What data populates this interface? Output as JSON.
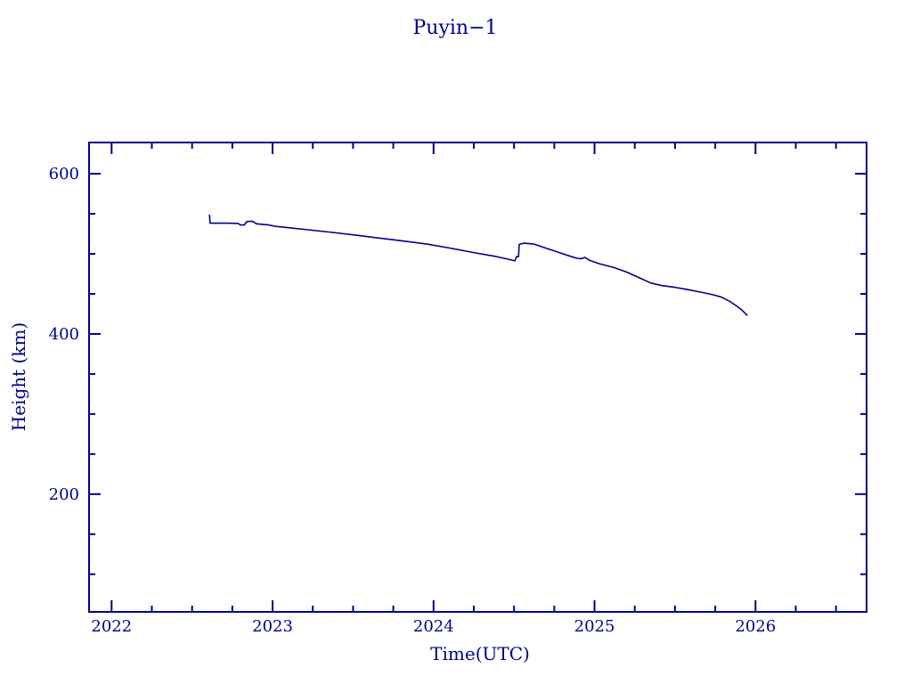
{
  "chart": {
    "title": "Puyin−1",
    "xlabel": "Time(UTC)",
    "ylabel": "Height (km)"
  },
  "chart_data": {
    "type": "line",
    "title": "Puyin−1",
    "xlabel": "Time(UTC)",
    "ylabel": "Height (km)",
    "xlim": [
      2021.86,
      2026.69
    ],
    "ylim": [
      53,
      639
    ],
    "x_major_ticks": [
      2022,
      2023,
      2024,
      2025,
      2026
    ],
    "x_minor_tick_step": 0.25,
    "y_major_ticks": [
      200,
      400,
      600
    ],
    "y_minor_tick_step": 50,
    "grid": false,
    "legend": "none",
    "background_color": "#FFFFFF",
    "axis_color": "#00008B",
    "line_color": "#00008B",
    "series": [
      {
        "name": "orbit-height-km",
        "points": [
          [
            2022.608,
            548.9
          ],
          [
            2022.612,
            538.3
          ],
          [
            2022.7,
            538.4
          ],
          [
            2022.785,
            538.0
          ],
          [
            2022.8,
            536.0
          ],
          [
            2022.825,
            536.0
          ],
          [
            2022.84,
            540.4
          ],
          [
            2022.875,
            540.7
          ],
          [
            2022.9,
            537.5
          ],
          [
            2022.97,
            536.3
          ],
          [
            2023.02,
            534.2
          ],
          [
            2023.1,
            532.6
          ],
          [
            2023.22,
            530.0
          ],
          [
            2023.35,
            527.2
          ],
          [
            2023.52,
            523.2
          ],
          [
            2023.65,
            519.9
          ],
          [
            2023.8,
            516.4
          ],
          [
            2023.96,
            512.1
          ],
          [
            2024.1,
            507.2
          ],
          [
            2024.25,
            501.6
          ],
          [
            2024.39,
            496.6
          ],
          [
            2024.46,
            493.4
          ],
          [
            2024.505,
            491.2
          ],
          [
            2024.515,
            496.4
          ],
          [
            2024.528,
            496.4
          ],
          [
            2024.532,
            511.8
          ],
          [
            2024.56,
            513.2
          ],
          [
            2024.62,
            512.3
          ],
          [
            2024.68,
            508.4
          ],
          [
            2024.75,
            503.6
          ],
          [
            2024.82,
            498.9
          ],
          [
            2024.89,
            494.4
          ],
          [
            2024.92,
            494.0
          ],
          [
            2024.94,
            495.6
          ],
          [
            2024.97,
            491.8
          ],
          [
            2025.03,
            487.7
          ],
          [
            2025.12,
            482.9
          ],
          [
            2025.2,
            477.2
          ],
          [
            2025.28,
            470.0
          ],
          [
            2025.35,
            463.5
          ],
          [
            2025.42,
            460.3
          ],
          [
            2025.5,
            458.2
          ],
          [
            2025.58,
            455.3
          ],
          [
            2025.66,
            452.2
          ],
          [
            2025.74,
            448.8
          ],
          [
            2025.79,
            445.8
          ],
          [
            2025.84,
            440.6
          ],
          [
            2025.89,
            433.8
          ],
          [
            2025.92,
            428.9
          ],
          [
            2025.95,
            423.0
          ]
        ]
      }
    ]
  }
}
